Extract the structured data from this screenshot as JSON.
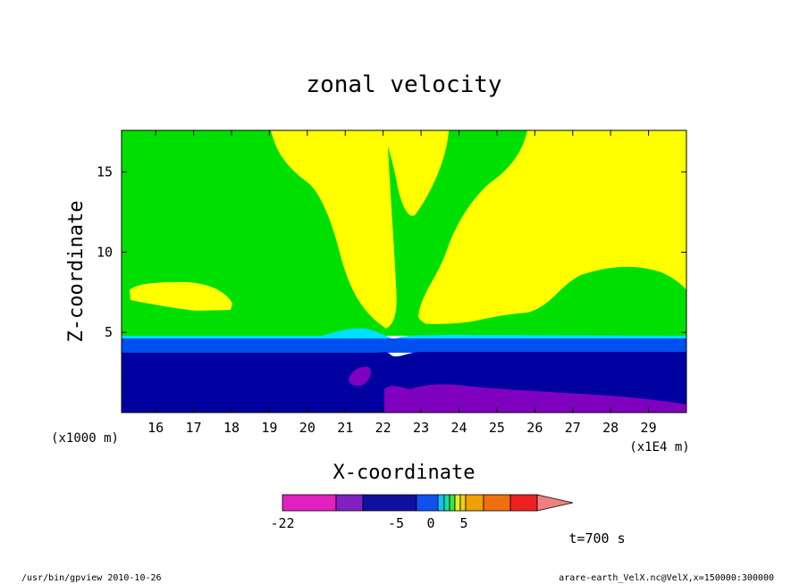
{
  "chart_data": {
    "type": "contour",
    "title": "zonal velocity",
    "xlabel": "X-coordinate",
    "ylabel": "Z-coordinate",
    "x_unit_label": "(x1E4 m)",
    "y_unit_label": "(x1000 m)",
    "xlim": [
      15.1,
      30
    ],
    "ylim": [
      0,
      17.6
    ],
    "x_ticks": [
      "16",
      "17",
      "18",
      "19",
      "20",
      "21",
      "22",
      "23",
      "24",
      "25",
      "26",
      "27",
      "28",
      "29"
    ],
    "y_ticks": [
      "5",
      "10",
      "15"
    ],
    "colorbar": {
      "tick_labels": [
        "-22",
        "-5",
        "0",
        "5"
      ],
      "colors": [
        "#e020c0",
        "#8020c0",
        "#1010a0",
        "#1050f0",
        "#10c0f0",
        "#10e0a0",
        "#40e040",
        "#e0f020",
        "#f0d010",
        "#f0a000",
        "#f07010",
        "#f02020",
        "#f08080"
      ]
    },
    "field_colors": {
      "green": "#00e000",
      "yellow": "#ffff00",
      "cyan": "#00e0ff",
      "blue": "#0050f0",
      "navy": "#0000a0",
      "purple": "#8000c0"
    },
    "annotation": "t=700 s",
    "footer_left": "/usr/bin/gpview  2010-10-26",
    "footer_right": "arare-earth_VelX.nc@VelX,x=150000:300000"
  }
}
